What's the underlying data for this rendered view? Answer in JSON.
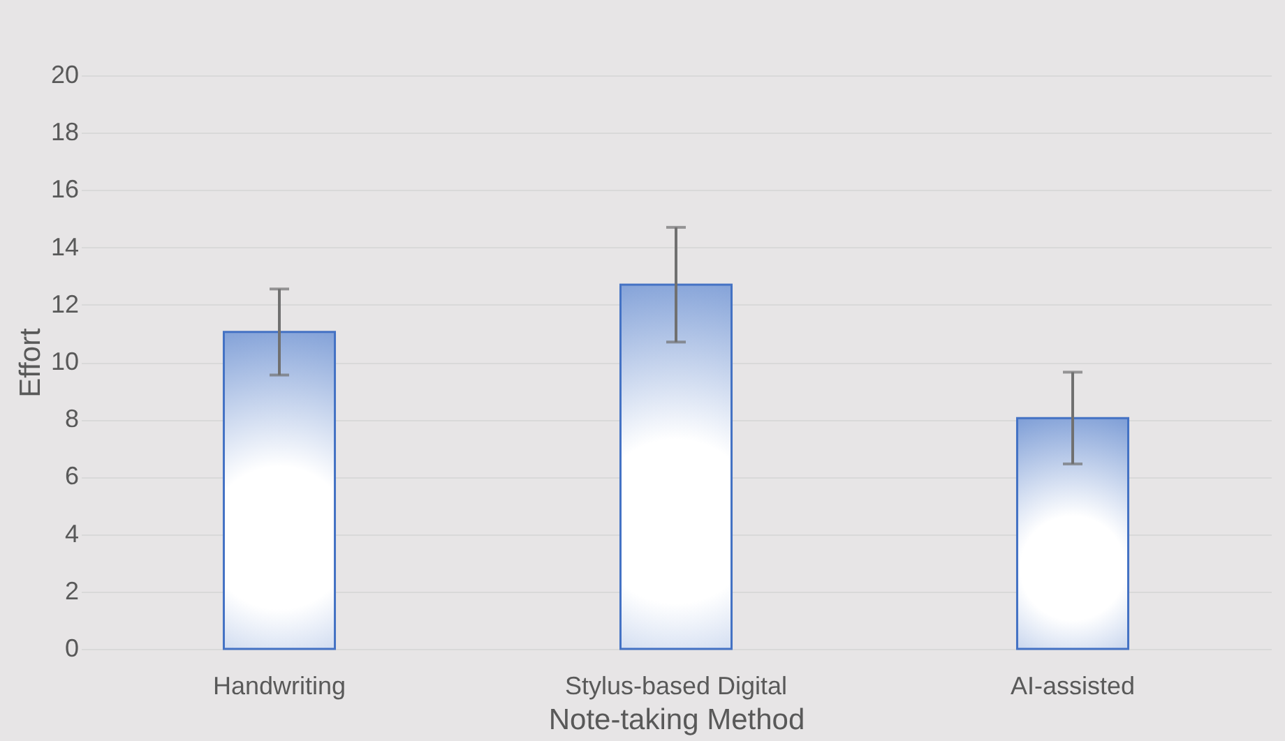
{
  "chart_data": {
    "type": "bar",
    "categories": [
      "Handwriting",
      "Stylus-based Digital",
      "AI-assisted"
    ],
    "values": [
      11.05,
      12.7,
      8.05
    ],
    "errors": [
      1.5,
      2.0,
      1.6
    ],
    "color": "#4472c4",
    "xlabel": "Note-taking Method",
    "ylabel": "Effort",
    "ylim": [
      0,
      20
    ],
    "yticks": [
      0,
      2,
      4,
      6,
      8,
      10,
      12,
      14,
      16,
      18,
      20
    ],
    "grid": "y"
  }
}
